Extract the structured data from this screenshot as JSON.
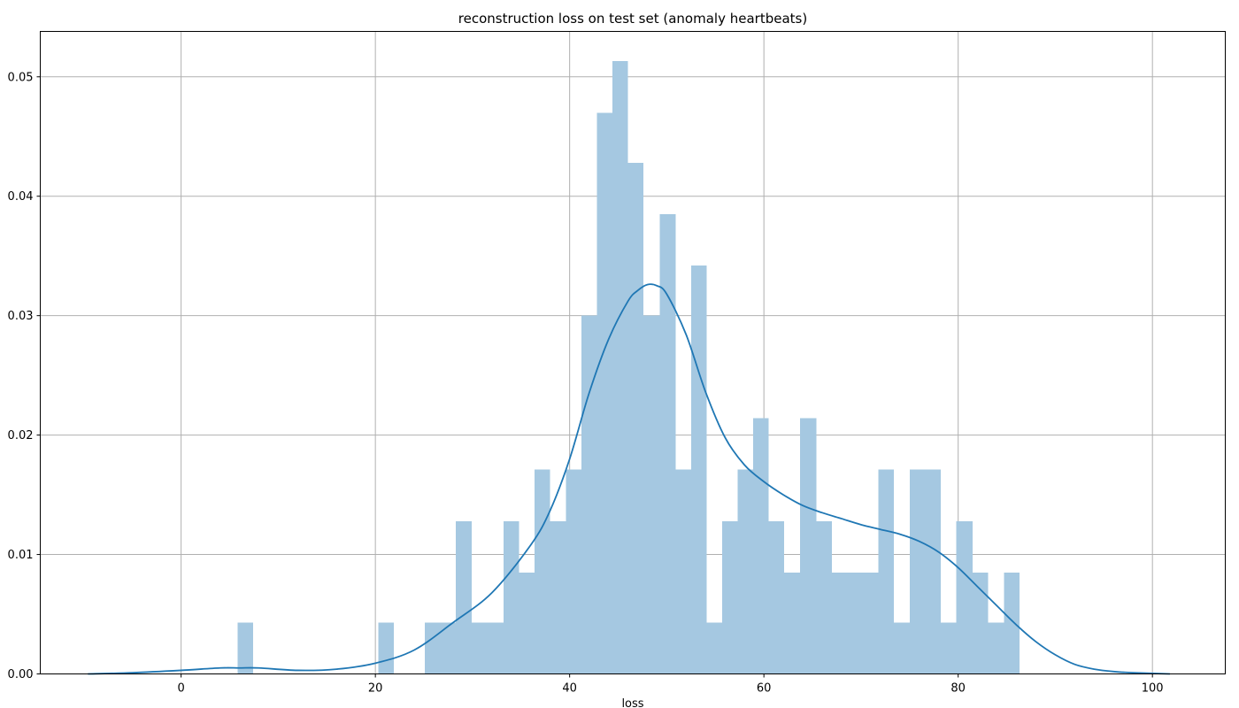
{
  "chart_data": {
    "type": "bar",
    "title": "reconstruction loss on test set (anomaly heartbeats)",
    "xlabel": "loss",
    "ylabel": "",
    "xlim": [
      -14.5,
      107.5
    ],
    "ylim": [
      0,
      0.0538
    ],
    "x_ticks": [
      0,
      20,
      40,
      60,
      80,
      100
    ],
    "x_tick_labels": [
      "0",
      "20",
      "40",
      "60",
      "80",
      "100"
    ],
    "y_ticks": [
      0.0,
      0.01,
      0.02,
      0.03,
      0.04,
      0.05
    ],
    "y_tick_labels": [
      "0.00",
      "0.01",
      "0.02",
      "0.03",
      "0.04",
      "0.05"
    ],
    "grid": true,
    "histogram": {
      "bin_edges": [
        5.8,
        7.4,
        9.0,
        10.6,
        12.2,
        13.8,
        15.4,
        17.1,
        18.7,
        20.3,
        21.9,
        23.5,
        25.1,
        26.7,
        28.3,
        29.9,
        31.5,
        33.2,
        34.8,
        36.4,
        38.0,
        39.6,
        41.2,
        42.8,
        44.4,
        46.0,
        47.6,
        49.3,
        50.9,
        52.5,
        54.1,
        55.7,
        57.3,
        58.9,
        60.5,
        62.1,
        63.7,
        65.4,
        67.0,
        68.6,
        70.2,
        71.8,
        73.4,
        75.0,
        76.6,
        78.2,
        79.8,
        81.5,
        83.1,
        84.7,
        86.3
      ],
      "densities": [
        0.0043,
        0,
        0,
        0,
        0,
        0,
        0,
        0,
        0,
        0.0043,
        0,
        0,
        0.0043,
        0.0043,
        0.0128,
        0.0043,
        0.0043,
        0.0128,
        0.0085,
        0.0171,
        0.0128,
        0.0171,
        0.03,
        0.047,
        0.0513,
        0.0428,
        0.03,
        0.0385,
        0.0171,
        0.0342,
        0.0043,
        0.0128,
        0.0171,
        0.0214,
        0.0128,
        0.0085,
        0.0214,
        0.0128,
        0.0085,
        0.0085,
        0.0085,
        0.0171,
        0.0043,
        0.0171,
        0.0171,
        0.0043,
        0.0128,
        0.0085,
        0.0043,
        0.0085
      ],
      "color": "#a5c8e1"
    },
    "kde": {
      "x": [
        -9.6,
        -5,
        0,
        4,
        6,
        8,
        12,
        16,
        20,
        24,
        28,
        32,
        36,
        38,
        40,
        42,
        44,
        46,
        47,
        48,
        49,
        50,
        52,
        54,
        56,
        58,
        60,
        62,
        64,
        66,
        68,
        70,
        72,
        74,
        76,
        78,
        80,
        82,
        84,
        86,
        88,
        90,
        92,
        94,
        96,
        98,
        101.8
      ],
      "y": [
        0.0,
        0.0001,
        0.0003,
        0.0005,
        0.0005,
        0.0005,
        0.0003,
        0.0004,
        0.0009,
        0.002,
        0.0043,
        0.0068,
        0.0108,
        0.0137,
        0.018,
        0.0235,
        0.028,
        0.0312,
        0.0321,
        0.0326,
        0.0325,
        0.0318,
        0.0284,
        0.0236,
        0.0198,
        0.0175,
        0.0161,
        0.015,
        0.0141,
        0.0135,
        0.013,
        0.0125,
        0.0121,
        0.0117,
        0.0111,
        0.0102,
        0.0089,
        0.0073,
        0.0057,
        0.0041,
        0.0027,
        0.0016,
        0.0008,
        0.0004,
        0.0002,
        0.0001,
        0.0
      ],
      "color": "#1f77b4"
    }
  }
}
